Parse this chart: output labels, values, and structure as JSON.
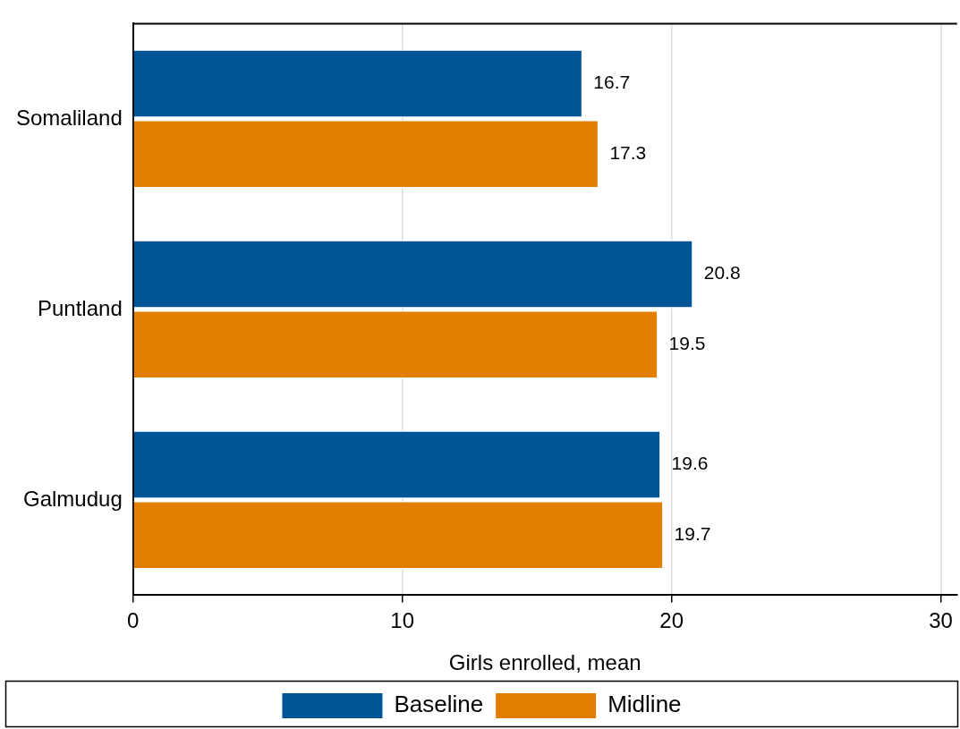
{
  "chart_data": {
    "type": "bar",
    "orientation": "horizontal",
    "categories": [
      "Somaliland",
      "Puntland",
      "Galmudug"
    ],
    "series": [
      {
        "name": "Baseline",
        "color": "#005597",
        "values": [
          16.7,
          20.8,
          19.6
        ]
      },
      {
        "name": "Midline",
        "color": "#e37f00",
        "values": [
          17.3,
          19.5,
          19.7
        ]
      }
    ],
    "xlabel": "Girls enrolled, mean",
    "xlim": [
      0,
      30.6
    ],
    "xticks": [
      0,
      10,
      20,
      30
    ],
    "grid": "x",
    "legend": "bottom",
    "data_labels": true
  }
}
